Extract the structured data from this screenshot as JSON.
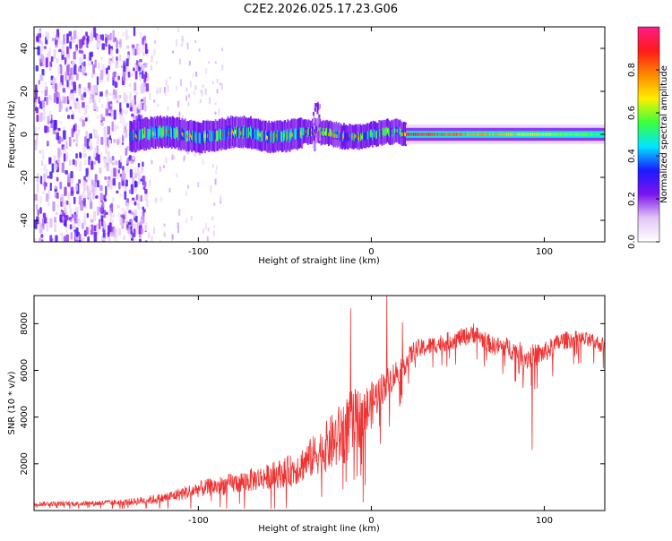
{
  "figure_title": "C2E2.2026.025.17.23.G06",
  "chart_data": [
    {
      "type": "heatmap",
      "title": "C2E2.2026.025.17.23.G06",
      "xlabel": "Height of straight line (km)",
      "ylabel": "Frequency (Hz)",
      "xlim": [
        -195,
        135
      ],
      "ylim": [
        -50,
        50
      ],
      "xticks": [
        -100,
        0,
        100
      ],
      "xtick_labels": [
        "-100",
        "0",
        "100"
      ],
      "yticks": [
        -40,
        -20,
        0,
        20,
        40
      ],
      "ytick_labels": [
        "-40",
        "-20",
        "0",
        "20",
        "40"
      ],
      "colorbar": {
        "label": "Normalized spectral amplitude",
        "range": [
          0,
          1
        ],
        "ticks": [
          0.0,
          0.2,
          0.4,
          0.6,
          0.8
        ],
        "tick_labels": [
          "0.0",
          "0.2",
          "0.4",
          "0.6",
          "0.8"
        ],
        "stops": [
          "#ffffff",
          "#e3c6f6",
          "#7b14ee",
          "#1b1bff",
          "#00e6ff",
          "#3cff3c",
          "#ffee00",
          "#ff8800",
          "#ff1a1a",
          "#ff1a86"
        ]
      },
      "description_regions": [
        {
          "x_range": [
            -195,
            -130
          ],
          "signal": "broadband noise",
          "amplitude_range": [
            0.05,
            0.3
          ]
        },
        {
          "x_range": [
            -140,
            20
          ],
          "signal": "narrow band near 0 Hz",
          "freq_halfwidth": 5,
          "amplitude_range": [
            0.2,
            0.6
          ]
        },
        {
          "x_range": [
            20,
            135
          ],
          "signal": "stable line at 0 Hz",
          "freq_halfwidth": 2,
          "amplitude_range": [
            0.5,
            0.9
          ]
        }
      ]
    },
    {
      "type": "line",
      "xlabel": "Height of straight line (km)",
      "ylabel": "SNR (10 * v/v)",
      "xlim": [
        -195,
        135
      ],
      "ylim": [
        0,
        9200
      ],
      "xticks": [
        -100,
        0,
        100
      ],
      "xtick_labels": [
        "-100",
        "0",
        "100"
      ],
      "yticks": [
        2000,
        4000,
        6000,
        8000
      ],
      "ytick_labels": [
        "2000",
        "4000",
        "6000",
        "8000"
      ],
      "series": [
        {
          "name": "SNR",
          "color": "#ee3333",
          "x": [
            -195,
            -180,
            -160,
            -140,
            -120,
            -100,
            -80,
            -60,
            -45,
            -30,
            -20,
            -12,
            -5,
            0,
            5,
            10,
            15,
            20,
            25,
            30,
            40,
            50,
            60,
            70,
            80,
            90,
            100,
            110,
            120,
            135
          ],
          "y": [
            300,
            300,
            320,
            380,
            550,
            950,
            1200,
            1500,
            1800,
            2600,
            3200,
            3800,
            4200,
            4600,
            5200,
            5600,
            6000,
            6400,
            6900,
            7000,
            7200,
            7400,
            7600,
            7100,
            7000,
            6600,
            6800,
            7300,
            7400,
            7100
          ],
          "noise_amplitude": [
            200,
            200,
            220,
            300,
            450,
            700,
            900,
            1100,
            1400,
            1900,
            2700,
            3000,
            2500,
            2000,
            1500,
            1300,
            1200,
            1000,
            900,
            800,
            800,
            800,
            800,
            800,
            900,
            1100,
            900,
            800,
            700,
            700
          ],
          "spikes": [
            {
              "x": -12,
              "y": 8650
            },
            {
              "x": 9,
              "y": 9200
            },
            {
              "x": 18,
              "y": 8050
            },
            {
              "x": 59,
              "y": 8000
            },
            {
              "x": 93,
              "y": 2600
            }
          ]
        }
      ]
    }
  ]
}
